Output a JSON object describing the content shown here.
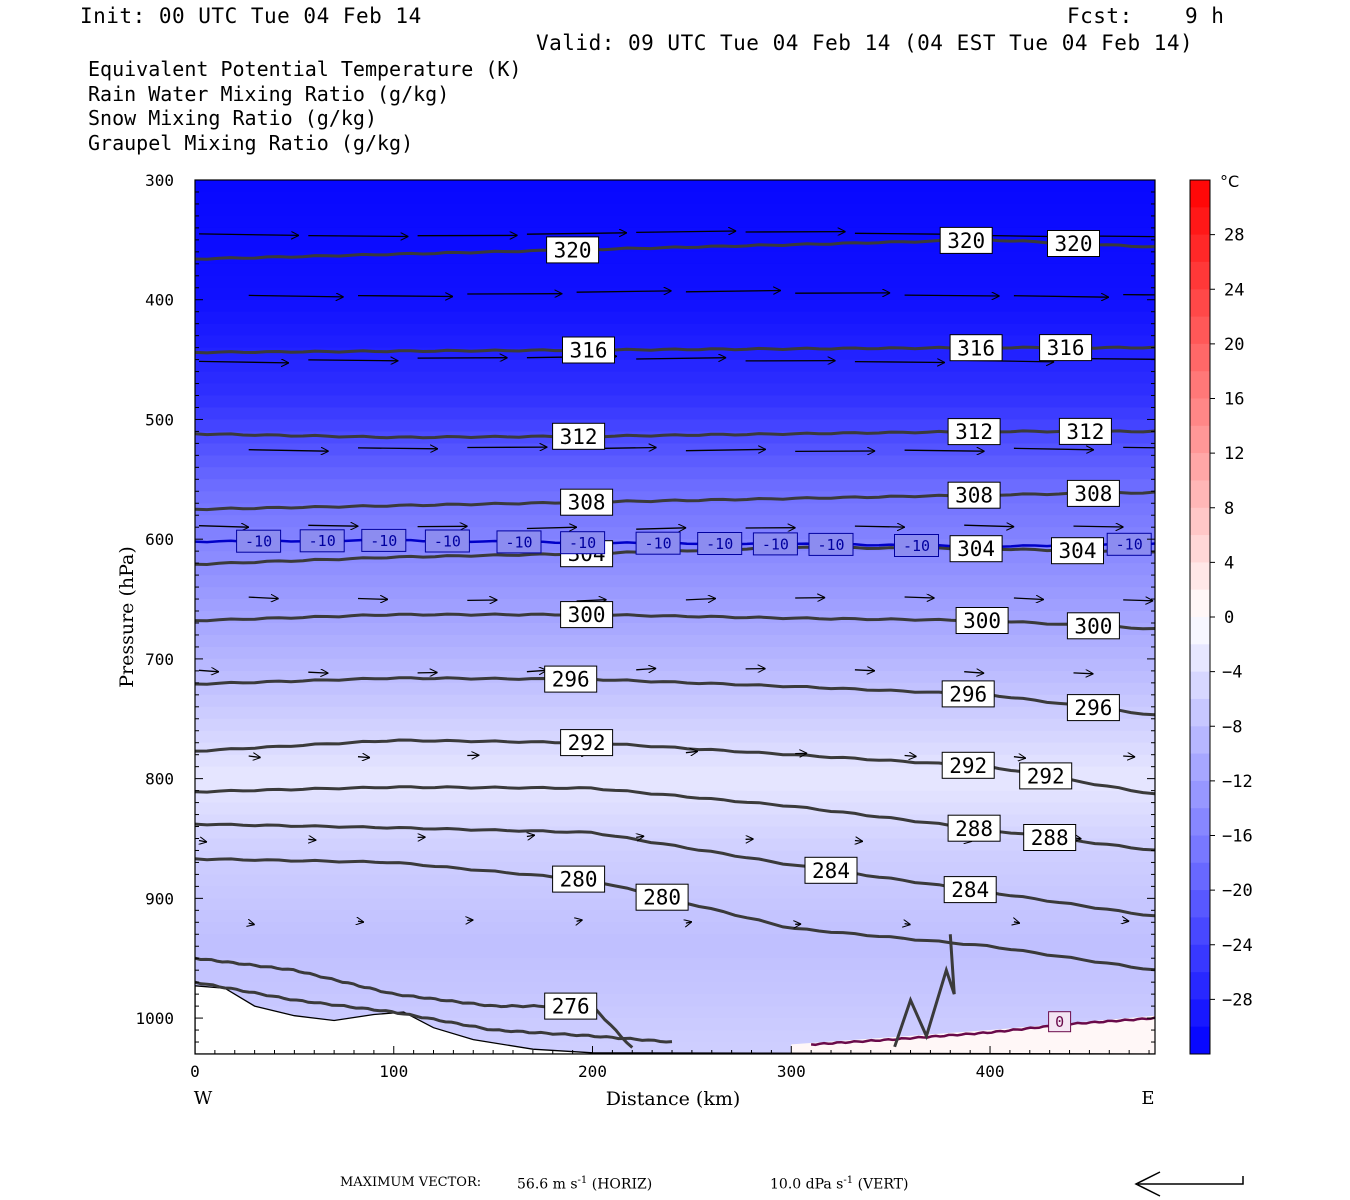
{
  "header": {
    "init": "Init: 00 UTC Tue 04 Feb 14",
    "fcst_label": "Fcst:",
    "fcst_value": "9 h",
    "valid": "Valid: 09 UTC Tue 04 Feb 14 (04 EST Tue 04 Feb 14)"
  },
  "fields": [
    {
      "label": "Equivalent Potential Temperature (K)",
      "color": "#555555"
    },
    {
      "label": "Rain Water Mixing Ratio (g/kg)",
      "color": "#1a7a1a"
    },
    {
      "label": "Snow Mixing Ratio (g/kg)",
      "color": "#f0956a"
    },
    {
      "label": "Graupel Mixing Ratio (g/kg)",
      "color": "#e87ce8"
    }
  ],
  "chart_data": {
    "type": "cross-section",
    "xlabel": "Distance (km)",
    "ylabel": "Pressure (hPa)",
    "xlim": [
      0,
      483
    ],
    "ylim": [
      300,
      1030
    ],
    "y_scale": "linear, inverted",
    "x_ticks": [
      0,
      100,
      200,
      300,
      400
    ],
    "y_ticks": [
      300,
      400,
      500,
      600,
      700,
      800,
      900,
      1000
    ],
    "x_end_labels": {
      "left": "W",
      "right": "E"
    },
    "colorbar": {
      "unit": "°C",
      "ticks": [
        28,
        24,
        20,
        16,
        12,
        8,
        4,
        0,
        -4,
        -8,
        -12,
        -16,
        -20,
        -24,
        -28
      ],
      "range": [
        -32,
        32
      ],
      "low_color": "#0000ff",
      "mid_color": "#ffffff",
      "high_color": "#ff0000"
    },
    "theta_e_contours": [
      {
        "value": 320,
        "x": [
          0,
          100,
          200,
          300,
          400,
          483
        ],
        "p": [
          366,
          362,
          358,
          354,
          350,
          356
        ],
        "labels": [
          190,
          388,
          442
        ]
      },
      {
        "value": 316,
        "x": [
          0,
          100,
          200,
          300,
          400,
          483
        ],
        "p": [
          444,
          443,
          442,
          441,
          440,
          440
        ],
        "labels": [
          198,
          393,
          438
        ]
      },
      {
        "value": 312,
        "x": [
          0,
          100,
          200,
          300,
          400,
          483
        ],
        "p": [
          512,
          515,
          514,
          512,
          510,
          510
        ],
        "labels": [
          193,
          392,
          448
        ]
      },
      {
        "value": 308,
        "x": [
          0,
          100,
          200,
          300,
          400,
          483
        ],
        "p": [
          575,
          572,
          569,
          566,
          563,
          561
        ],
        "labels": [
          197,
          392,
          452
        ]
      },
      {
        "value": 304,
        "x": [
          0,
          100,
          200,
          300,
          400,
          483
        ],
        "p": [
          621,
          615,
          612,
          607,
          608,
          611
        ],
        "labels": [
          197,
          393,
          444
        ]
      },
      {
        "value": 300,
        "x": [
          0,
          100,
          200,
          300,
          400,
          483
        ],
        "p": [
          668,
          663,
          663,
          666,
          668,
          675
        ],
        "labels": [
          197,
          396,
          452
        ]
      },
      {
        "value": 296,
        "x": [
          0,
          100,
          200,
          300,
          400,
          483
        ],
        "p": [
          721,
          716,
          717,
          723,
          730,
          747
        ],
        "labels": [
          189,
          389,
          452
        ]
      },
      {
        "value": 292,
        "x": [
          0,
          100,
          200,
          300,
          400,
          483
        ],
        "p": [
          777,
          768,
          770,
          780,
          790,
          813
        ],
        "labels": [
          197,
          389,
          428
        ]
      },
      {
        "value": 288,
        "x": [
          0,
          100,
          200,
          300,
          400,
          483
        ],
        "p": [
          811,
          807,
          808,
          823,
          843,
          860
        ],
        "labels": [
          392,
          430
        ]
      },
      {
        "value": 284,
        "x": [
          0,
          100,
          200,
          300,
          400,
          483
        ],
        "p": [
          838,
          841,
          845,
          872,
          895,
          915
        ],
        "labels": [
          320,
          390
        ]
      },
      {
        "value": 280,
        "x": [
          0,
          100,
          200,
          300,
          400,
          483
        ],
        "p": [
          867,
          870,
          885,
          925,
          940,
          960
        ],
        "labels": [
          193,
          235
        ]
      },
      {
        "value": 276,
        "x": [
          0,
          50,
          100,
          150,
          200,
          220
        ],
        "p": [
          950,
          960,
          980,
          990,
          990,
          1025
        ],
        "labels": [
          189
        ]
      },
      {
        "value": 272,
        "x": [
          0,
          50,
          100,
          150,
          200,
          240
        ],
        "p": [
          970,
          985,
          995,
          1010,
          1015,
          1020
        ],
        "labels": []
      }
    ],
    "isotherm_minus10": {
      "value": -10,
      "x": [
        0,
        100,
        200,
        300,
        400,
        483
      ],
      "p": [
        602,
        601,
        603,
        604,
        606,
        604
      ],
      "label": "-10",
      "color": "#0000c8"
    },
    "isotherm_0": {
      "value": 0,
      "x": [
        310,
        350,
        400,
        440,
        483
      ],
      "p": [
        1022,
        1018,
        1012,
        1005,
        1000
      ],
      "label": "0",
      "color": "#6a0a4a"
    },
    "wind_levels": [
      {
        "p": 345,
        "length": 1.0
      },
      {
        "p": 395,
        "length": 0.95
      },
      {
        "p": 450,
        "length": 0.9
      },
      {
        "p": 525,
        "length": 0.8
      },
      {
        "p": 590,
        "length": 0.5
      },
      {
        "p": 650,
        "length": 0.3
      },
      {
        "p": 710,
        "length": 0.2
      },
      {
        "p": 780,
        "length": 0.12
      },
      {
        "p": 850,
        "length": 0.08
      },
      {
        "p": 920,
        "length": 0.06
      }
    ]
  },
  "footer": {
    "max_vector_label": "MAXIMUM VECTOR:",
    "horiz_value": "56.6 m s",
    "horiz_exp": "-1",
    "horiz_tag": "(HORIZ)",
    "vert_value": "10.0 dPa s",
    "vert_exp": "-1",
    "vert_tag": "(VERT)"
  }
}
